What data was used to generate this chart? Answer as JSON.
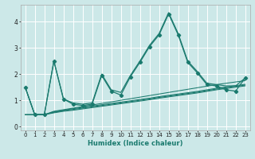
{
  "xlabel": "Humidex (Indice chaleur)",
  "bg_color": "#cce8e8",
  "line_color": "#1a7a6e",
  "grid_color": "#ffffff",
  "xlim": [
    -0.5,
    23.5
  ],
  "ylim": [
    -0.15,
    4.65
  ],
  "xticks": [
    0,
    1,
    2,
    3,
    4,
    5,
    6,
    7,
    8,
    9,
    10,
    11,
    12,
    13,
    14,
    15,
    16,
    17,
    18,
    19,
    20,
    21,
    22,
    23
  ],
  "yticks": [
    0,
    1,
    2,
    3,
    4
  ],
  "main_series_x": [
    0,
    1,
    2,
    3,
    4,
    5,
    6,
    7,
    8,
    9,
    10,
    11,
    12,
    13,
    14,
    15,
    16,
    17,
    18,
    19,
    20,
    21,
    22,
    23
  ],
  "main_series_y": [
    1.5,
    0.45,
    0.45,
    2.5,
    1.05,
    0.85,
    0.8,
    0.85,
    1.95,
    1.35,
    1.2,
    1.9,
    2.45,
    3.05,
    3.5,
    4.3,
    3.5,
    2.45,
    2.05,
    1.6,
    1.55,
    1.4,
    1.35,
    1.85
  ],
  "upper_band_y": [
    1.5,
    0.45,
    0.45,
    2.5,
    1.05,
    0.9,
    0.85,
    0.9,
    2.0,
    1.4,
    1.3,
    1.95,
    2.5,
    3.1,
    3.55,
    4.35,
    3.55,
    2.5,
    2.1,
    1.65,
    1.6,
    1.55,
    1.55,
    1.85
  ],
  "trend1_y": [
    0.45,
    0.45,
    0.45,
    0.52,
    0.58,
    0.62,
    0.67,
    0.72,
    0.77,
    0.82,
    0.87,
    0.92,
    0.97,
    1.02,
    1.08,
    1.13,
    1.18,
    1.23,
    1.28,
    1.34,
    1.4,
    1.45,
    1.5,
    1.55
  ],
  "trend2_y": [
    0.45,
    0.45,
    0.45,
    0.54,
    0.6,
    0.65,
    0.7,
    0.75,
    0.8,
    0.85,
    0.9,
    0.95,
    1.0,
    1.05,
    1.11,
    1.16,
    1.21,
    1.26,
    1.31,
    1.37,
    1.43,
    1.48,
    1.53,
    1.58
  ],
  "trend3_y": [
    0.45,
    0.45,
    0.45,
    0.56,
    0.62,
    0.68,
    0.73,
    0.78,
    0.83,
    0.88,
    0.93,
    0.98,
    1.03,
    1.08,
    1.14,
    1.19,
    1.24,
    1.29,
    1.34,
    1.4,
    1.46,
    1.51,
    1.56,
    1.61
  ],
  "trend4_y": [
    1.5,
    0.45,
    0.45,
    0.58,
    0.64,
    0.7,
    0.76,
    0.82,
    0.88,
    0.94,
    1.0,
    1.06,
    1.12,
    1.18,
    1.24,
    1.3,
    1.36,
    1.42,
    1.48,
    1.54,
    1.6,
    1.65,
    1.7,
    1.75
  ]
}
